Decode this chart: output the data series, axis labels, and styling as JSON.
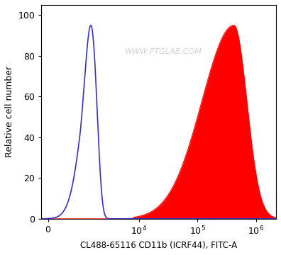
{
  "ylabel": "Relative cell number",
  "xlabel": "CL488-65116 CD11b (ICRF44), FITC-A",
  "watermark": "WWW.PTGLAB.COM",
  "blue_color": "#3333cc",
  "red_color": "#ff0000",
  "bg_color": "#ffffff",
  "yticks": [
    0,
    20,
    40,
    60,
    80,
    100
  ],
  "ymax": 105,
  "symlog_linthresh": 1000,
  "symlog_linscale": 0.5
}
